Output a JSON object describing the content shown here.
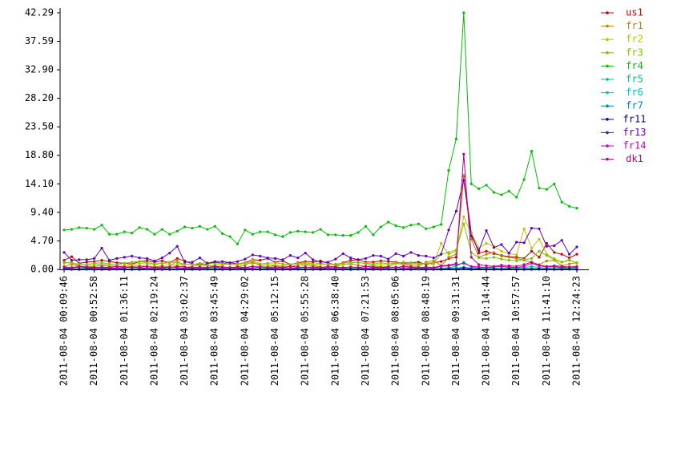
{
  "chart_data": {
    "type": "line",
    "categories": [
      "2011-08-04 00:09:46",
      null,
      null,
      null,
      "2011-08-04 00:52:58",
      null,
      null,
      null,
      "2011-08-04 01:36:11",
      null,
      null,
      null,
      "2011-08-04 02:19:24",
      null,
      null,
      null,
      "2011-08-04 03:02:37",
      null,
      null,
      null,
      "2011-08-04 03:45:49",
      null,
      null,
      null,
      "2011-08-04 04:29:02",
      null,
      null,
      null,
      "2011-08-04 05:12:15",
      null,
      null,
      null,
      "2011-08-04 05:55:28",
      null,
      null,
      null,
      "2011-08-04 06:38:40",
      null,
      null,
      null,
      "2011-08-04 07:21:53",
      null,
      null,
      null,
      "2011-08-04 08:05:06",
      null,
      null,
      null,
      "2011-08-04 08:48:19",
      null,
      null,
      null,
      "2011-08-04 09:31:31",
      null,
      null,
      null,
      "2011-08-04 10:14:44",
      null,
      null,
      null,
      "2011-08-04 10:57:57",
      null,
      null,
      null,
      "2011-08-04 11:41:10",
      null,
      null,
      null,
      "2011-08-04 12:24:23"
    ],
    "ylim": [
      0,
      42.29
    ],
    "yticks": [
      {
        "value": 0,
        "label": "0.00"
      },
      {
        "value": 4.7,
        "label": "4.70"
      },
      {
        "value": 9.4,
        "label": "9.40"
      },
      {
        "value": 14.1,
        "label": "14.10"
      },
      {
        "value": 18.8,
        "label": "18.80"
      },
      {
        "value": 23.5,
        "label": "23.50"
      },
      {
        "value": 28.2,
        "label": "28.20"
      },
      {
        "value": 32.9,
        "label": "32.90"
      },
      {
        "value": 37.59,
        "label": "37.59"
      },
      {
        "value": 42.29,
        "label": "42.29"
      }
    ],
    "grid": false,
    "markers": true,
    "legend": "top-right",
    "series": [
      {
        "name": "us1",
        "color": "#c00000",
        "values": [
          1.5,
          2.1,
          1.0,
          1.2,
          1.3,
          1.5,
          1.3,
          1.1,
          1.0,
          0.9,
          1.3,
          1.4,
          1.2,
          1.4,
          1.1,
          1.8,
          1.4,
          0.9,
          0.8,
          0.9,
          1.2,
          1.0,
          1.1,
          0.9,
          1.1,
          1.6,
          1.5,
          1.8,
          1.2,
          1.4,
          0.8,
          1.1,
          1.3,
          1.2,
          1.4,
          1.0,
          0.8,
          1.1,
          1.5,
          1.6,
          1.2,
          1.2,
          1.4,
          1.3,
          1.2,
          1.0,
          1.1,
          1.2,
          0.8,
          1.1,
          1.3,
          1.8,
          2.0,
          15.3,
          6.0,
          2.7,
          3.0,
          2.6,
          2.3,
          2.1,
          2.0,
          1.8,
          3.0,
          2.0,
          4.3,
          2.8,
          2.5,
          1.9,
          2.5
        ]
      },
      {
        "name": "fr1",
        "color": "#c08000",
        "values": [
          0.5,
          0.8,
          0.6,
          0.4,
          0.5,
          0.7,
          0.5,
          0.4,
          0.4,
          0.5,
          0.6,
          0.5,
          0.4,
          0.6,
          0.4,
          1.5,
          0.3,
          0.5,
          0.8,
          0.6,
          0.5,
          0.4,
          0.3,
          0.4,
          0.7,
          1.3,
          0.6,
          0.5,
          0.6,
          0.4,
          0.5,
          0.7,
          0.8,
          0.6,
          0.4,
          0.3,
          0.5,
          0.8,
          0.9,
          0.7,
          0.5,
          0.6,
          0.4,
          0.5,
          1.0,
          0.8,
          0.6,
          0.5,
          1.2,
          1.4,
          0.6,
          2.0,
          2.5,
          15.5,
          5.0,
          2.0,
          2.5,
          2.8,
          2.2,
          2.0,
          1.8,
          1.5,
          1.2,
          0.8,
          1.4,
          1.5,
          0.6,
          0.9,
          1.1
        ]
      },
      {
        "name": "fr2",
        "color": "#c0c000",
        "values": [
          1.0,
          1.2,
          0.6,
          0.5,
          0.8,
          0.9,
          0.7,
          0.5,
          0.6,
          0.8,
          1.0,
          0.9,
          0.7,
          1.1,
          0.8,
          0.7,
          0.9,
          0.8,
          1.0,
          0.7,
          0.6,
          0.8,
          0.9,
          0.7,
          1.0,
          1.5,
          0.9,
          0.8,
          0.7,
          0.6,
          0.8,
          1.0,
          0.9,
          0.7,
          0.8,
          0.9,
          0.7,
          0.8,
          1.0,
          1.2,
          0.9,
          0.8,
          0.7,
          0.9,
          1.1,
          0.8,
          0.9,
          0.7,
          1.0,
          0.8,
          4.3,
          2.5,
          3.0,
          8.7,
          6.0,
          3.5,
          4.3,
          3.8,
          3.0,
          2.6,
          2.4,
          6.7,
          3.5,
          5.0,
          2.5,
          1.8,
          1.2,
          1.6,
          1.0
        ]
      },
      {
        "name": "fr3",
        "color": "#80c000",
        "values": [
          1.2,
          1.0,
          0.9,
          0.8,
          1.0,
          1.1,
          0.9,
          0.8,
          1.0,
          1.2,
          1.3,
          1.1,
          0.9,
          1.0,
          1.2,
          1.1,
          0.9,
          0.8,
          1.0,
          1.1,
          0.9,
          1.0,
          0.8,
          0.9,
          1.1,
          1.0,
          0.9,
          1.0,
          1.1,
          0.9,
          0.8,
          1.0,
          1.1,
          0.9,
          1.0,
          0.8,
          0.9,
          1.0,
          1.2,
          1.1,
          1.0,
          0.9,
          1.1,
          0.9,
          1.0,
          1.2,
          1.1,
          0.9,
          1.0,
          1.1,
          2.5,
          2.8,
          3.2,
          7.5,
          2.8,
          1.9,
          1.8,
          2.0,
          1.7,
          1.5,
          1.4,
          1.6,
          1.8,
          3.0,
          2.3,
          1.6,
          1.2,
          1.5,
          1.1
        ]
      },
      {
        "name": "fr4",
        "color": "#00c000",
        "values": [
          6.5,
          6.6,
          6.9,
          6.8,
          6.6,
          7.3,
          5.8,
          5.8,
          6.2,
          6.0,
          6.9,
          6.6,
          5.8,
          6.6,
          5.8,
          6.3,
          7.0,
          6.8,
          7.1,
          6.6,
          7.1,
          5.9,
          5.4,
          4.2,
          6.5,
          5.8,
          6.2,
          6.2,
          5.7,
          5.4,
          6.1,
          6.3,
          6.2,
          6.1,
          6.6,
          5.7,
          5.7,
          5.6,
          5.6,
          6.1,
          7.1,
          5.7,
          7.0,
          7.8,
          7.2,
          6.9,
          7.3,
          7.5,
          6.7,
          7.0,
          7.4,
          16.3,
          21.5,
          42.29,
          14.1,
          13.3,
          13.9,
          12.7,
          12.3,
          12.9,
          11.9,
          14.8,
          19.5,
          13.4,
          13.2,
          14.1,
          11.1,
          10.4,
          10.1
        ]
      },
      {
        "name": "fr5",
        "color": "#00c080",
        "values": [
          0.2,
          0.1,
          0.1,
          0.2,
          0.1,
          0.1,
          0.2,
          0.1,
          0.1,
          0.1,
          0.2,
          0.1,
          0.1,
          0.2,
          0.1,
          0.1,
          0.1,
          0.2,
          0.1,
          0.1,
          0.2,
          0.1,
          0.1,
          0.1,
          0.2,
          0.1,
          0.1,
          0.2,
          0.1,
          0.1,
          0.1,
          0.2,
          0.1,
          0.1,
          0.2,
          0.1,
          0.1,
          0.1,
          0.2,
          0.1,
          0.1,
          0.2,
          0.1,
          0.1,
          0.1,
          0.2,
          0.1,
          0.1,
          0.2,
          0.1,
          0.2,
          0.3,
          0.5,
          1.2,
          0.4,
          0.2,
          0.3,
          0.2,
          0.2,
          0.3,
          0.2,
          0.3,
          0.5,
          0.3,
          0.2,
          0.3,
          0.2,
          0.2,
          0.1
        ]
      },
      {
        "name": "fr6",
        "color": "#00c0c0",
        "values": [
          0.1,
          0.1,
          0.0,
          0.1,
          0.1,
          0.0,
          0.1,
          0.1,
          0.0,
          0.1,
          0.1,
          0.0,
          0.1,
          0.1,
          0.0,
          0.1,
          0.1,
          0.0,
          0.1,
          0.1,
          0.0,
          0.1,
          0.1,
          0.0,
          0.1,
          0.1,
          0.0,
          0.1,
          0.1,
          0.0,
          0.1,
          0.1,
          0.0,
          0.1,
          0.1,
          0.0,
          0.1,
          0.1,
          0.0,
          0.1,
          0.1,
          0.0,
          0.1,
          0.1,
          0.0,
          0.1,
          0.1,
          0.0,
          0.1,
          0.1,
          0.1,
          0.2,
          0.2,
          0.4,
          0.2,
          0.1,
          0.1,
          0.1,
          0.1,
          0.1,
          0.1,
          0.1,
          0.2,
          0.1,
          0.1,
          0.1,
          0.1,
          0.1,
          0.1
        ]
      },
      {
        "name": "fr7",
        "color": "#0080c0",
        "values": [
          0.0,
          0.0,
          0.1,
          0.0,
          0.0,
          0.1,
          0.0,
          0.0,
          0.1,
          0.0,
          0.0,
          0.1,
          0.0,
          0.0,
          0.1,
          0.0,
          0.0,
          0.1,
          0.0,
          0.0,
          0.1,
          0.0,
          0.0,
          0.1,
          0.0,
          0.0,
          0.1,
          0.0,
          0.0,
          0.1,
          0.0,
          0.0,
          0.1,
          0.0,
          0.0,
          0.1,
          0.0,
          0.0,
          0.1,
          0.0,
          0.0,
          0.1,
          0.0,
          0.0,
          0.1,
          0.0,
          0.0,
          0.1,
          0.0,
          0.0,
          0.1,
          0.1,
          0.1,
          0.3,
          0.1,
          0.1,
          0.0,
          0.1,
          0.0,
          0.1,
          0.0,
          0.1,
          0.1,
          0.0,
          0.1,
          0.0,
          0.1,
          0.0,
          0.0
        ]
      },
      {
        "name": "fr11",
        "color": "#0000a0",
        "values": [
          0.1,
          0.0,
          0.0,
          0.1,
          0.0,
          0.0,
          0.0,
          0.1,
          0.0,
          0.0,
          0.0,
          0.1,
          0.0,
          0.0,
          0.0,
          0.1,
          0.0,
          0.0,
          0.0,
          0.1,
          0.0,
          0.0,
          0.0,
          0.1,
          0.0,
          0.0,
          0.0,
          0.1,
          0.0,
          0.0,
          0.0,
          0.1,
          0.0,
          0.0,
          0.0,
          0.1,
          0.0,
          0.0,
          0.0,
          0.1,
          0.0,
          0.0,
          0.0,
          0.1,
          0.0,
          0.0,
          0.0,
          0.1,
          0.0,
          0.0,
          0.0,
          0.1,
          0.0,
          0.2,
          0.0,
          0.1,
          0.0,
          0.0,
          0.0,
          0.1,
          0.0,
          0.0,
          0.0,
          0.1,
          0.0,
          0.0,
          0.0,
          0.1,
          0.0
        ]
      },
      {
        "name": "fr13",
        "color": "#6000c0",
        "values": [
          2.8,
          1.5,
          1.6,
          1.6,
          1.8,
          3.5,
          1.5,
          1.8,
          2.0,
          2.2,
          1.9,
          1.8,
          1.4,
          1.9,
          2.7,
          3.8,
          1.2,
          1.2,
          1.9,
          1.0,
          1.3,
          1.3,
          1.1,
          1.3,
          1.7,
          2.4,
          2.2,
          1.9,
          1.8,
          1.6,
          2.3,
          1.9,
          2.7,
          1.6,
          1.2,
          1.2,
          1.7,
          2.6,
          1.9,
          1.6,
          1.8,
          2.3,
          2.2,
          1.7,
          2.6,
          2.2,
          2.8,
          2.3,
          2.2,
          1.9,
          2.5,
          6.5,
          9.6,
          14.7,
          5.5,
          3.1,
          6.4,
          3.6,
          4.1,
          2.7,
          4.5,
          4.4,
          6.8,
          6.7,
          3.8,
          3.9,
          4.8,
          2.5,
          3.7
        ]
      },
      {
        "name": "fr14",
        "color": "#c000c0",
        "values": [
          0.3,
          0.2,
          0.4,
          0.3,
          0.2,
          0.3,
          0.2,
          0.2,
          0.3,
          0.4,
          0.3,
          0.2,
          0.3,
          0.2,
          0.4,
          0.3,
          0.2,
          0.3,
          0.2,
          0.3,
          0.4,
          0.2,
          0.3,
          0.2,
          0.3,
          0.2,
          0.4,
          0.3,
          0.2,
          0.3,
          0.2,
          0.3,
          0.4,
          0.2,
          0.3,
          0.2,
          0.3,
          0.2,
          0.4,
          0.3,
          0.2,
          0.3,
          0.2,
          0.3,
          0.4,
          0.2,
          0.3,
          0.2,
          0.3,
          0.2,
          0.5,
          0.6,
          0.8,
          1.0,
          0.5,
          0.4,
          0.3,
          0.4,
          0.5,
          0.4,
          0.3,
          0.5,
          1.0,
          0.6,
          0.4,
          0.5,
          0.3,
          0.4,
          0.3
        ]
      },
      {
        "name": "dk1",
        "color": "#c00080",
        "values": [
          0.4,
          0.3,
          0.5,
          0.4,
          0.3,
          0.4,
          0.3,
          0.5,
          0.4,
          0.3,
          0.4,
          0.5,
          0.3,
          0.4,
          0.3,
          0.5,
          0.4,
          0.3,
          0.4,
          0.3,
          0.5,
          0.4,
          0.3,
          0.4,
          0.3,
          0.5,
          0.4,
          0.3,
          0.4,
          0.3,
          0.5,
          0.4,
          0.3,
          0.4,
          0.3,
          0.5,
          0.4,
          0.3,
          0.4,
          0.3,
          0.5,
          0.4,
          0.3,
          0.4,
          0.3,
          0.5,
          0.4,
          0.3,
          0.4,
          0.3,
          0.6,
          0.7,
          1.0,
          19.0,
          2.0,
          0.8,
          0.6,
          0.5,
          0.7,
          0.6,
          0.5,
          0.8,
          1.2,
          0.7,
          0.5,
          0.6,
          0.5,
          0.4,
          0.5
        ]
      }
    ]
  }
}
